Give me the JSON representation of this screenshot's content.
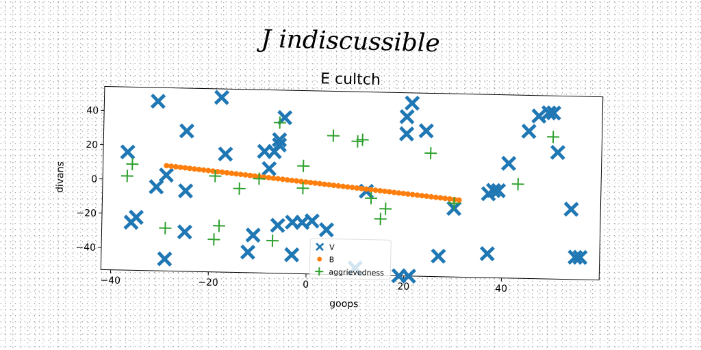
{
  "figure": {
    "suptitle": "J indiscussible",
    "title": "E cultch"
  },
  "chart_data": {
    "type": "scatter",
    "title": "E cultch",
    "xlabel": "goops",
    "ylabel": "divans",
    "xlim": [
      -42,
      60
    ],
    "ylim": [
      -53,
      54
    ],
    "xticks": [
      -40,
      -20,
      0,
      20,
      40
    ],
    "yticks": [
      -40,
      -20,
      0,
      20,
      40
    ],
    "grid": false,
    "legend_position": "lower-center",
    "series": [
      {
        "name": "V",
        "marker": "x-filled",
        "color": "#1f77b4",
        "points": [
          [
            -37,
            16
          ],
          [
            -36,
            -25
          ],
          [
            -35,
            -22
          ],
          [
            -31,
            -4
          ],
          [
            -31,
            46
          ],
          [
            -29,
            -46
          ],
          [
            -29,
            3
          ],
          [
            -25,
            -30
          ],
          [
            -25,
            -6
          ],
          [
            -25,
            29
          ],
          [
            -18,
            49
          ],
          [
            -17,
            16
          ],
          [
            -12,
            -41
          ],
          [
            -11,
            -31
          ],
          [
            -9,
            18
          ],
          [
            -8,
            8
          ],
          [
            -7,
            18
          ],
          [
            -6,
            22
          ],
          [
            -6,
            -25
          ],
          [
            -6,
            25
          ],
          [
            -5,
            38
          ],
          [
            -3,
            -23
          ],
          [
            -3,
            -42
          ],
          [
            -1,
            -23
          ],
          [
            1,
            -22
          ],
          [
            4,
            -27
          ],
          [
            10,
            -49
          ],
          [
            12,
            -4
          ],
          [
            19,
            -53
          ],
          [
            20,
            40
          ],
          [
            20,
            30
          ],
          [
            21,
            -53
          ],
          [
            21,
            48
          ],
          [
            24,
            32
          ],
          [
            27,
            -41
          ],
          [
            30,
            -13
          ],
          [
            37,
            -4
          ],
          [
            37,
            -39
          ],
          [
            38,
            -2
          ],
          [
            39,
            -2
          ],
          [
            41,
            14
          ],
          [
            45,
            33
          ],
          [
            47,
            42
          ],
          [
            49,
            44
          ],
          [
            50,
            44
          ],
          [
            51,
            21
          ],
          [
            54,
            -12
          ],
          [
            55,
            -40
          ],
          [
            56,
            -40
          ]
        ]
      },
      {
        "name": "B",
        "marker": "circle",
        "color": "#ff7f0e",
        "line_from": [
          -29,
          8.5
        ],
        "line_to": [
          31,
          -8
        ],
        "count": 64
      },
      {
        "name": "aggrievedness",
        "marker": "plus",
        "color": "#2ca02c",
        "points": [
          [
            -37,
            2
          ],
          [
            -36,
            9
          ],
          [
            -29,
            -28
          ],
          [
            -19,
            3
          ],
          [
            -18,
            -26
          ],
          [
            -19,
            -34
          ],
          [
            -14,
            -4
          ],
          [
            -10,
            2
          ],
          [
            -7,
            -34
          ],
          [
            -6,
            35
          ],
          [
            -1,
            10
          ],
          [
            -1,
            -3
          ],
          [
            5,
            28
          ],
          [
            10,
            25
          ],
          [
            11,
            26
          ],
          [
            13,
            -8
          ],
          [
            15,
            -20
          ],
          [
            16,
            -14
          ],
          [
            25,
            19
          ],
          [
            30,
            -10
          ],
          [
            43,
            2
          ],
          [
            50,
            30
          ]
        ]
      }
    ]
  }
}
